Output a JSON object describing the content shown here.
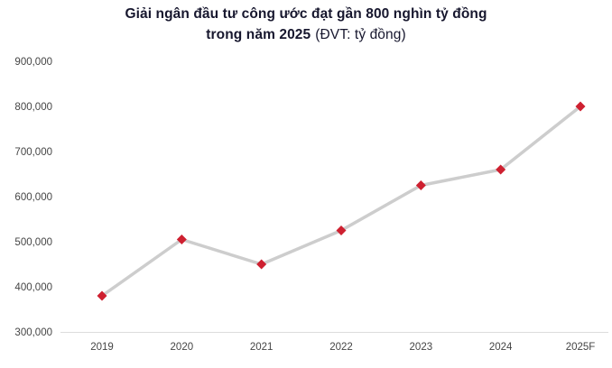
{
  "title": {
    "line1": "Giải ngân đầu tư công ước đạt gần 800 nghìn tỷ đồng",
    "line2_bold": "trong năm 2025",
    "line2_unit": "(ĐVT: tỷ đồng)"
  },
  "colors": {
    "marker": "#ce2030",
    "series_line": "#cdcdcd",
    "axis_line": "#dcdcdc",
    "title_text": "#17172e",
    "tick_text": "#454545"
  },
  "chart_data": {
    "type": "line",
    "categories": [
      "2019",
      "2020",
      "2021",
      "2022",
      "2023",
      "2024",
      "2025F"
    ],
    "values": [
      380000,
      505000,
      450000,
      525000,
      625000,
      660000,
      800000
    ],
    "title": "Giải ngân đầu tư công ước đạt gần 800 nghìn tỷ đồng trong năm 2025",
    "unit_note": "ĐVT: tỷ đồng",
    "xlabel": "",
    "ylabel": "tỷ đồng",
    "ylim": [
      300000,
      900000
    ],
    "ytick_step": 100000,
    "grid": false,
    "legend": "none",
    "marker": "diamond"
  }
}
